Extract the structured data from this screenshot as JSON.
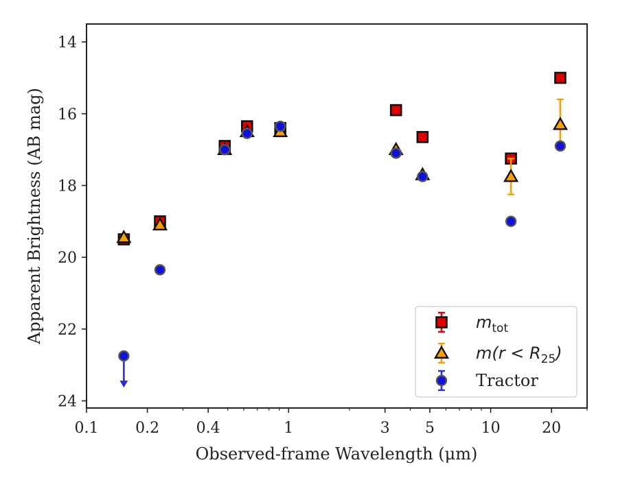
{
  "chart_data": {
    "type": "scatter",
    "title": "",
    "xlabel": "Observed-frame Wavelength (μm)",
    "ylabel": "Apparent Brightness (AB mag)",
    "xscale": "log",
    "xlim": [
      0.1,
      30
    ],
    "ylim": [
      24.2,
      13.5
    ],
    "y_inverted": true,
    "xticks": [
      {
        "value": 0.1,
        "label": "0.1"
      },
      {
        "value": 0.2,
        "label": "0.2"
      },
      {
        "value": 0.4,
        "label": "0.4"
      },
      {
        "value": 1,
        "label": "1"
      },
      {
        "value": 3,
        "label": "3"
      },
      {
        "value": 5,
        "label": "5"
      },
      {
        "value": 10,
        "label": "10"
      },
      {
        "value": 20,
        "label": "20"
      }
    ],
    "yticks": [
      {
        "value": 14,
        "label": "14"
      },
      {
        "value": 16,
        "label": "16"
      },
      {
        "value": 18,
        "label": "18"
      },
      {
        "value": 20,
        "label": "20"
      },
      {
        "value": 22,
        "label": "22"
      },
      {
        "value": 24,
        "label": "24"
      }
    ],
    "grid": false,
    "legend_position": "lower-right",
    "series": [
      {
        "name": "m_tot",
        "marker": "square",
        "color": "#e00000",
        "errcolor": "#e00000",
        "points": [
          {
            "x": 0.153,
            "y": 19.5,
            "err": 0.1
          },
          {
            "x": 0.231,
            "y": 19.0,
            "err": 0.1
          },
          {
            "x": 0.483,
            "y": 16.9,
            "err": 0.05
          },
          {
            "x": 0.623,
            "y": 16.35,
            "err": 0.05
          },
          {
            "x": 0.91,
            "y": 16.4,
            "err": 0.05
          },
          {
            "x": 3.4,
            "y": 15.9,
            "err": 0.05
          },
          {
            "x": 4.6,
            "y": 16.65,
            "err": 0.05
          },
          {
            "x": 12.6,
            "y": 17.25,
            "err": 0.1
          },
          {
            "x": 22.1,
            "y": 15.0,
            "err": 0.05
          }
        ]
      },
      {
        "name": "m(r < R25)",
        "marker": "triangle",
        "color": "#f5a000",
        "errcolor": "#f5a000",
        "points": [
          {
            "x": 0.153,
            "y": 19.45,
            "err": 0.05
          },
          {
            "x": 0.231,
            "y": 19.1,
            "err": 0.05
          },
          {
            "x": 0.483,
            "y": 17.0,
            "err": 0.05
          },
          {
            "x": 0.623,
            "y": 16.5,
            "err": 0.05
          },
          {
            "x": 0.91,
            "y": 16.5,
            "err": 0.05
          },
          {
            "x": 3.4,
            "y": 17.0,
            "err": 0.05
          },
          {
            "x": 4.6,
            "y": 17.7,
            "err": 0.05
          },
          {
            "x": 12.6,
            "y": 17.75,
            "err": 0.5
          },
          {
            "x": 22.1,
            "y": 16.3,
            "err": 0.7
          }
        ]
      },
      {
        "name": "Tractor",
        "marker": "circle",
        "color": "#1010dd",
        "errcolor": "#2a2ae0",
        "points": [
          {
            "x": 0.153,
            "y": 22.75,
            "upper_limit": true
          },
          {
            "x": 0.231,
            "y": 20.35,
            "err": 0.05
          },
          {
            "x": 0.483,
            "y": 17.0,
            "err": 0.05
          },
          {
            "x": 0.623,
            "y": 16.55,
            "err": 0.05
          },
          {
            "x": 0.91,
            "y": 16.35,
            "err": 0.05
          },
          {
            "x": 3.4,
            "y": 17.1,
            "err": 0.05
          },
          {
            "x": 4.6,
            "y": 17.75,
            "err": 0.05
          },
          {
            "x": 12.6,
            "y": 19.0,
            "err": 0.05
          },
          {
            "x": 22.1,
            "y": 16.9,
            "err": 0.05
          }
        ]
      }
    ],
    "legend": {
      "entries": [
        {
          "series": "m_tot",
          "label_main": "m",
          "label_sub": "tot"
        },
        {
          "series": "m(r < R25)",
          "label_main": "m(r < R",
          "label_sub": "25",
          "label_tail": ")"
        },
        {
          "series": "Tractor",
          "label_main": "Tractor"
        }
      ]
    }
  }
}
